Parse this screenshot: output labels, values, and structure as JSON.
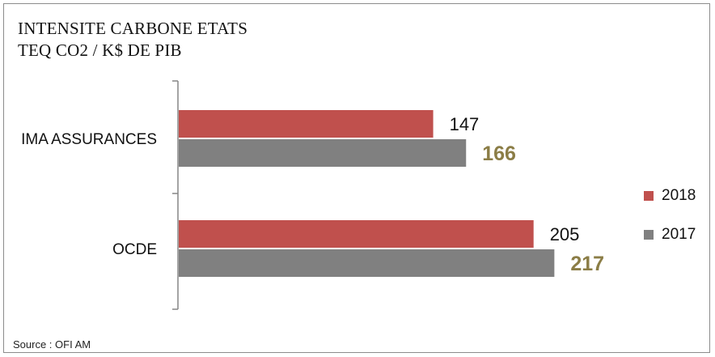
{
  "chart_data": {
    "type": "bar",
    "orientation": "horizontal",
    "title": "INTENSITE CARBONE ETATS",
    "subtitle": "TEQ CO2 / K$ DE PIB",
    "categories": [
      "IMA ASSURANCES",
      "OCDE"
    ],
    "series": [
      {
        "name": "2018",
        "values": [
          147,
          205
        ],
        "color": "#c0504d",
        "label_color": "#111111"
      },
      {
        "name": "2017",
        "values": [
          166,
          217
        ],
        "color": "#808080",
        "label_color": "#8b7d46"
      }
    ],
    "xlim": [
      0,
      300
    ],
    "grid": false,
    "legend": "right"
  },
  "footer": {
    "source": "Source : OFI AM"
  }
}
